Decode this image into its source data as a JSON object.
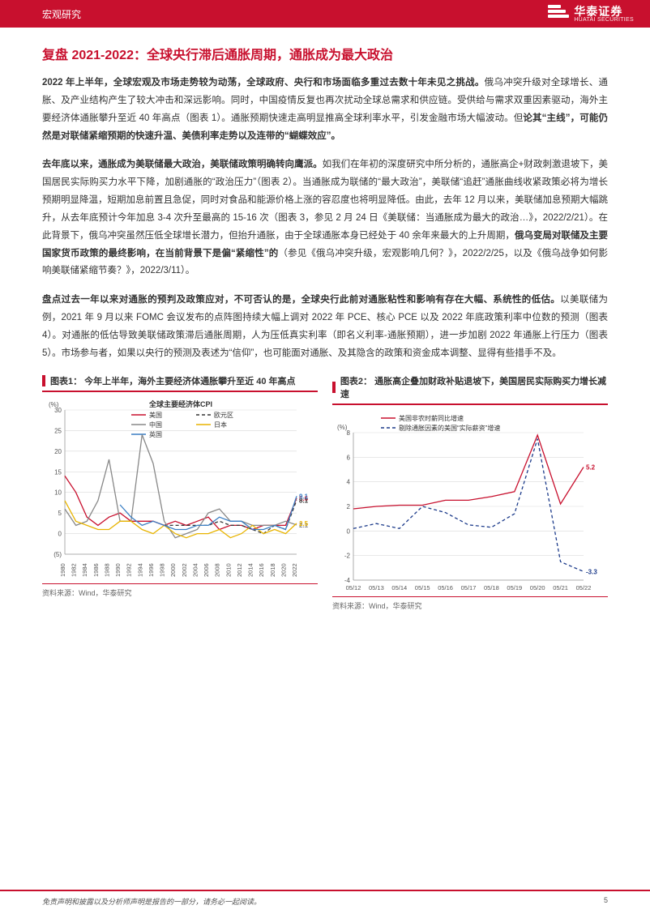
{
  "header": {
    "category": "宏观研究",
    "logo_cn": "华泰证券",
    "logo_en": "HUATAI SECURITIES"
  },
  "section_title": "复盘 2021-2022：全球央行滞后通胀周期，通胀成为最大政治",
  "paragraphs": {
    "p1": {
      "bold_lead": "2022 年上半年，全球宏观及市场走势较为动荡，全球政府、央行和市场面临多重过去数十年未见之挑战。",
      "body1": "俄乌冲突升级对全球增长、通胀、及产业结构产生了较大冲击和深远影响。同时，中国疫情反复也再次扰动全球总需求和供应链。受供给与需求双重因素驱动，海外主要经济体通胀攀升至近 40 年高点（图表 1）。通胀预期快速走高明显推高全球利率水平，引发金融市场大幅波动。但",
      "bold_tail": "论其“主线”，可能仍然是对联储紧缩预期的快速升温、美债利率走势以及连带的“蝴蝶效应”。"
    },
    "p2": {
      "bold_lead": "去年底以来，通胀成为美联储最大政治，美联储政策明确转向鹰派。",
      "body1": "如我们在年初的深度研究中所分析的，通胀高企+财政刺激退坡下，美国居民实际购买力水平下降，加剧通胀的“政治压力”（图表 2）。当通胀成为联储的“最大政治”，美联储“追赶”通胀曲线收紧政策必将为增长预期明显降温，短期加息前置且急促，同时对食品和能源价格上涨的容忍度也将明显降低。由此，去年 12 月以来，美联储加息预期大幅跳升，从去年底预计今年加息 3-4 次升至最高的 15-16 次（图表 3，参见 2 月 24 日《美联储：当通胀成为最大的政治…》，2022/2/21）。在此背景下，俄乌冲突虽然压低全球增长潜力，但抬升通胀，由于全球通胀本身已经处于 40 余年来最大的上升周期，",
      "bold_mid": "俄乌变局对联储及主要国家货币政策的最终影响，在当前背景下是偏“紧缩性”的",
      "body2": "（参见《俄乌冲突升级，宏观影响几何？》，2022/2/25，以及《俄乌战争如何影响美联储紧缩节奏？》，2022/3/11）。"
    },
    "p3": {
      "bold_lead": "盘点过去一年以来对通胀的预判及政策应对，不可否认的是，全球央行此前对通胀粘性和影响有存在大幅、系统性的低估。",
      "body1": "以美联储为例，2021 年 9 月以来 FOMC 会议发布的点阵图持续大幅上调对 2022 年 PCE、核心 PCE 以及 2022 年底政策利率中位数的预测（图表 4）。对通胀的低估导致美联储政策滞后通胀周期，人为压低真实利率（即名义利率-通胀预期），进一步加剧 2022 年通胀上行压力（图表 5）。市场参与者，如果以央行的预测及表述为“信仰”，也可能面对通胀、及其隐含的政策和资金成本调整、显得有些措手不及。"
    }
  },
  "chart1": {
    "type": "line",
    "title": "图表1：   今年上半年，海外主要经济体通胀攀升至近 40 年高点",
    "plot_title": "全球主要经济体CPI",
    "y_unit": "(%)",
    "ylim": [
      -5,
      30
    ],
    "ytick_step": 5,
    "x_labels": [
      "1980",
      "1982",
      "1984",
      "1986",
      "1988",
      "1990",
      "1992",
      "1994",
      "1996",
      "1998",
      "2000",
      "2002",
      "2004",
      "2006",
      "2008",
      "2010",
      "2012",
      "2014",
      "2016",
      "2018",
      "2020",
      "2022"
    ],
    "x_count": 22,
    "series": [
      {
        "name": "美国",
        "color": "#c8102e",
        "dash": "none",
        "end_label": "8.6",
        "values": [
          14,
          10,
          4,
          2,
          4,
          5,
          3,
          3,
          3,
          2,
          3,
          2,
          3,
          4,
          1,
          2,
          2,
          1,
          2,
          2,
          2,
          8.6
        ]
      },
      {
        "name": "欧元区",
        "color": "#333333",
        "dash": "4,3",
        "end_label": "8.1",
        "values": [
          null,
          null,
          null,
          null,
          null,
          null,
          null,
          null,
          null,
          2,
          2,
          2,
          2,
          2,
          3,
          2,
          2,
          1,
          0,
          2,
          1,
          8.1
        ]
      },
      {
        "name": "中国",
        "color": "#888888",
        "dash": "none",
        "end_label": "2.1",
        "values": [
          6,
          2,
          3,
          8,
          18,
          3,
          3,
          24,
          17,
          3,
          -1,
          0,
          1,
          5,
          6,
          3,
          3,
          2,
          2,
          2,
          3,
          2.1
        ]
      },
      {
        "name": "日本",
        "color": "#e8b400",
        "dash": "none",
        "end_label": "2.5",
        "values": [
          8,
          3,
          2,
          1,
          1,
          3,
          3,
          1,
          0,
          2,
          0,
          -1,
          0,
          0,
          1,
          -1,
          0,
          2,
          0,
          1,
          0,
          2.5
        ]
      },
      {
        "name": "英国",
        "color": "#3b7fc4",
        "dash": "none",
        "end_label": "9.1",
        "values": [
          null,
          null,
          null,
          null,
          null,
          7,
          4,
          2,
          3,
          2,
          1,
          1,
          2,
          2,
          4,
          3,
          3,
          1,
          1,
          2,
          1,
          9.1
        ]
      }
    ],
    "source": "资料来源：Wind，华泰研究"
  },
  "chart2": {
    "type": "line",
    "title": "图表2：   通胀高企叠加财政补贴退坡下，美国居民实际购买力增长减速",
    "y_unit": "(%)",
    "ylim": [
      -4,
      8
    ],
    "ytick_step": 2,
    "x_labels": [
      "05/12",
      "05/13",
      "05/14",
      "05/15",
      "05/16",
      "05/17",
      "05/18",
      "05/19",
      "05/20",
      "05/21",
      "05/22"
    ],
    "x_count": 11,
    "series": [
      {
        "name": "美国非农时薪同比增速",
        "color": "#c8102e",
        "dash": "none",
        "end_label": "5.2",
        "values": [
          1.8,
          2.0,
          2.1,
          2.1,
          2.5,
          2.5,
          2.8,
          3.2,
          7.8,
          2.2,
          5.2
        ]
      },
      {
        "name": "剔除通胀因素的美国“实际薪资”增速",
        "color": "#1b3a8a",
        "dash": "4,3",
        "end_label": "-3.3",
        "values": [
          0.2,
          0.6,
          0.2,
          2.0,
          1.5,
          0.5,
          0.3,
          1.4,
          7.5,
          -2.5,
          -3.3
        ]
      }
    ],
    "source": "资料来源：Wind，华泰研究"
  },
  "footer": {
    "disclaimer": "免责声明和披露以及分析师声明是报告的一部分，请务必一起阅读。",
    "page": "5"
  },
  "colors": {
    "brand_red": "#c8102e",
    "text": "#333333",
    "grid": "#d9d9d9",
    "axis": "#666666"
  }
}
